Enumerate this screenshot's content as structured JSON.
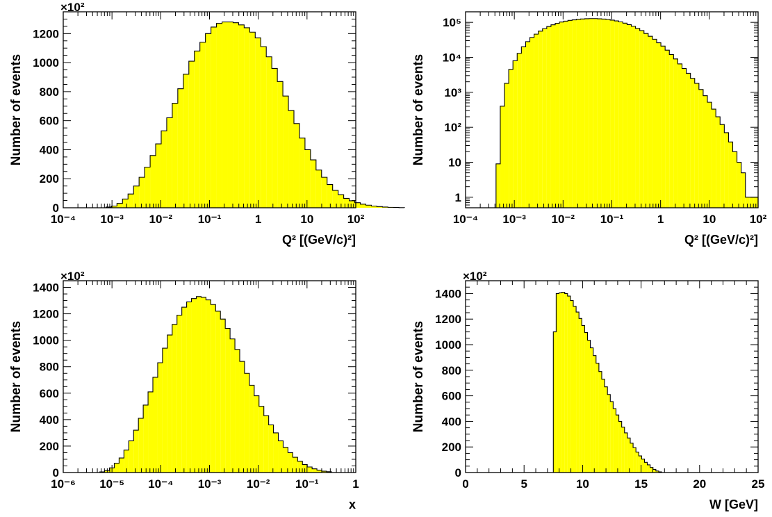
{
  "chart_data": [
    {
      "type": "histogram",
      "xscale": "log",
      "yscale": "linear",
      "xlim": [
        0.0001,
        100
      ],
      "ylim": [
        0,
        1350
      ],
      "multiplier_label": "×10²",
      "ylabel": "Number of events",
      "xlabel": "Q² [(GeV/c)²]",
      "x_ticks": [
        "10⁻⁴",
        "10⁻³",
        "10⁻²",
        "10⁻¹",
        "1",
        "10",
        "10²"
      ],
      "y_ticks": [
        "0",
        "200",
        "400",
        "600",
        "800",
        "1000",
        "1200"
      ],
      "fill_color": "#ffff00",
      "bin_edges_log10": [
        -3.125,
        3.0
      ],
      "values": [
        5,
        12,
        30,
        60,
        95,
        150,
        210,
        280,
        360,
        440,
        530,
        620,
        720,
        820,
        920,
        1010,
        1080,
        1140,
        1200,
        1245,
        1270,
        1280,
        1280,
        1275,
        1260,
        1240,
        1210,
        1170,
        1110,
        1040,
        960,
        870,
        770,
        670,
        580,
        480,
        400,
        330,
        260,
        210,
        160,
        120,
        90,
        65,
        48,
        35,
        25,
        18,
        12,
        8,
        5,
        3,
        2,
        1
      ]
    },
    {
      "type": "histogram",
      "xscale": "log",
      "yscale": "log",
      "xlim": [
        0.0001,
        100
      ],
      "ylim": [
        0.5,
        200000
      ],
      "ylabel": "Number of events",
      "xlabel": "Q² [(GeV/c)²]",
      "x_ticks": [
        "10⁻⁴",
        "10⁻³",
        "10⁻²",
        "10⁻¹",
        "1",
        "10",
        "10²"
      ],
      "y_ticks": [
        "1",
        "10",
        "10²",
        "10³",
        "10⁴",
        "10⁵"
      ],
      "fill_color": "#ffff00",
      "bin_edges_log10": [
        -3.375,
        2.0
      ],
      "values": [
        9,
        400,
        1800,
        4500,
        8000,
        13000,
        20000,
        28000,
        37000,
        46000,
        56000,
        66000,
        76000,
        85000,
        94000,
        102000,
        108000,
        114000,
        118000,
        122000,
        125000,
        127000,
        128000,
        128000,
        126000,
        124000,
        121000,
        116000,
        110000,
        103000,
        95000,
        86000,
        77000,
        67000,
        58000,
        48000,
        40000,
        33000,
        26000,
        21000,
        16000,
        12000,
        9000,
        6500,
        4800,
        3500,
        2500,
        1800,
        1200,
        800,
        520,
        330,
        200,
        120,
        70,
        38,
        20,
        10,
        5,
        1,
        1,
        1
      ]
    },
    {
      "type": "histogram",
      "xscale": "log",
      "yscale": "linear",
      "xlim": [
        1e-06,
        1
      ],
      "ylim": [
        0,
        1450
      ],
      "multiplier_label": "×10²",
      "ylabel": "Number of events",
      "xlabel": "x",
      "x_ticks": [
        "10⁻⁶",
        "10⁻⁵",
        "10⁻⁴",
        "10⁻³",
        "10⁻²",
        "10⁻¹",
        "1"
      ],
      "y_ticks": [
        "0",
        "200",
        "400",
        "600",
        "800",
        "1000",
        "1200",
        "1400"
      ],
      "fill_color": "#ffff00",
      "bin_edges_log10": [
        -5.25,
        -0.5
      ],
      "values": [
        5,
        15,
        35,
        70,
        110,
        170,
        240,
        320,
        410,
        510,
        610,
        720,
        830,
        940,
        1040,
        1120,
        1190,
        1250,
        1290,
        1315,
        1330,
        1325,
        1305,
        1270,
        1220,
        1160,
        1090,
        1010,
        930,
        840,
        750,
        660,
        580,
        500,
        430,
        360,
        300,
        240,
        190,
        150,
        115,
        85,
        60,
        42,
        28,
        18,
        10,
        6
      ]
    },
    {
      "type": "histogram",
      "xscale": "linear",
      "yscale": "linear",
      "xlim": [
        0,
        25
      ],
      "ylim": [
        0,
        1500
      ],
      "multiplier_label": "×10²",
      "ylabel": "Number of events",
      "xlabel": "W [GeV]",
      "x_ticks": [
        "0",
        "5",
        "10",
        "15",
        "20",
        "25"
      ],
      "y_ticks": [
        "0",
        "200",
        "400",
        "600",
        "800",
        "1000",
        "1200",
        "1400"
      ],
      "fill_color": "#ffff00",
      "bin_edges": [
        7.5,
        16.75
      ],
      "values": [
        1100,
        1400,
        1405,
        1410,
        1400,
        1380,
        1345,
        1300,
        1255,
        1205,
        1150,
        1095,
        1035,
        975,
        915,
        855,
        790,
        730,
        670,
        610,
        555,
        500,
        450,
        400,
        355,
        310,
        270,
        230,
        195,
        160,
        130,
        105,
        80,
        60,
        40,
        25,
        12,
        5
      ]
    }
  ]
}
